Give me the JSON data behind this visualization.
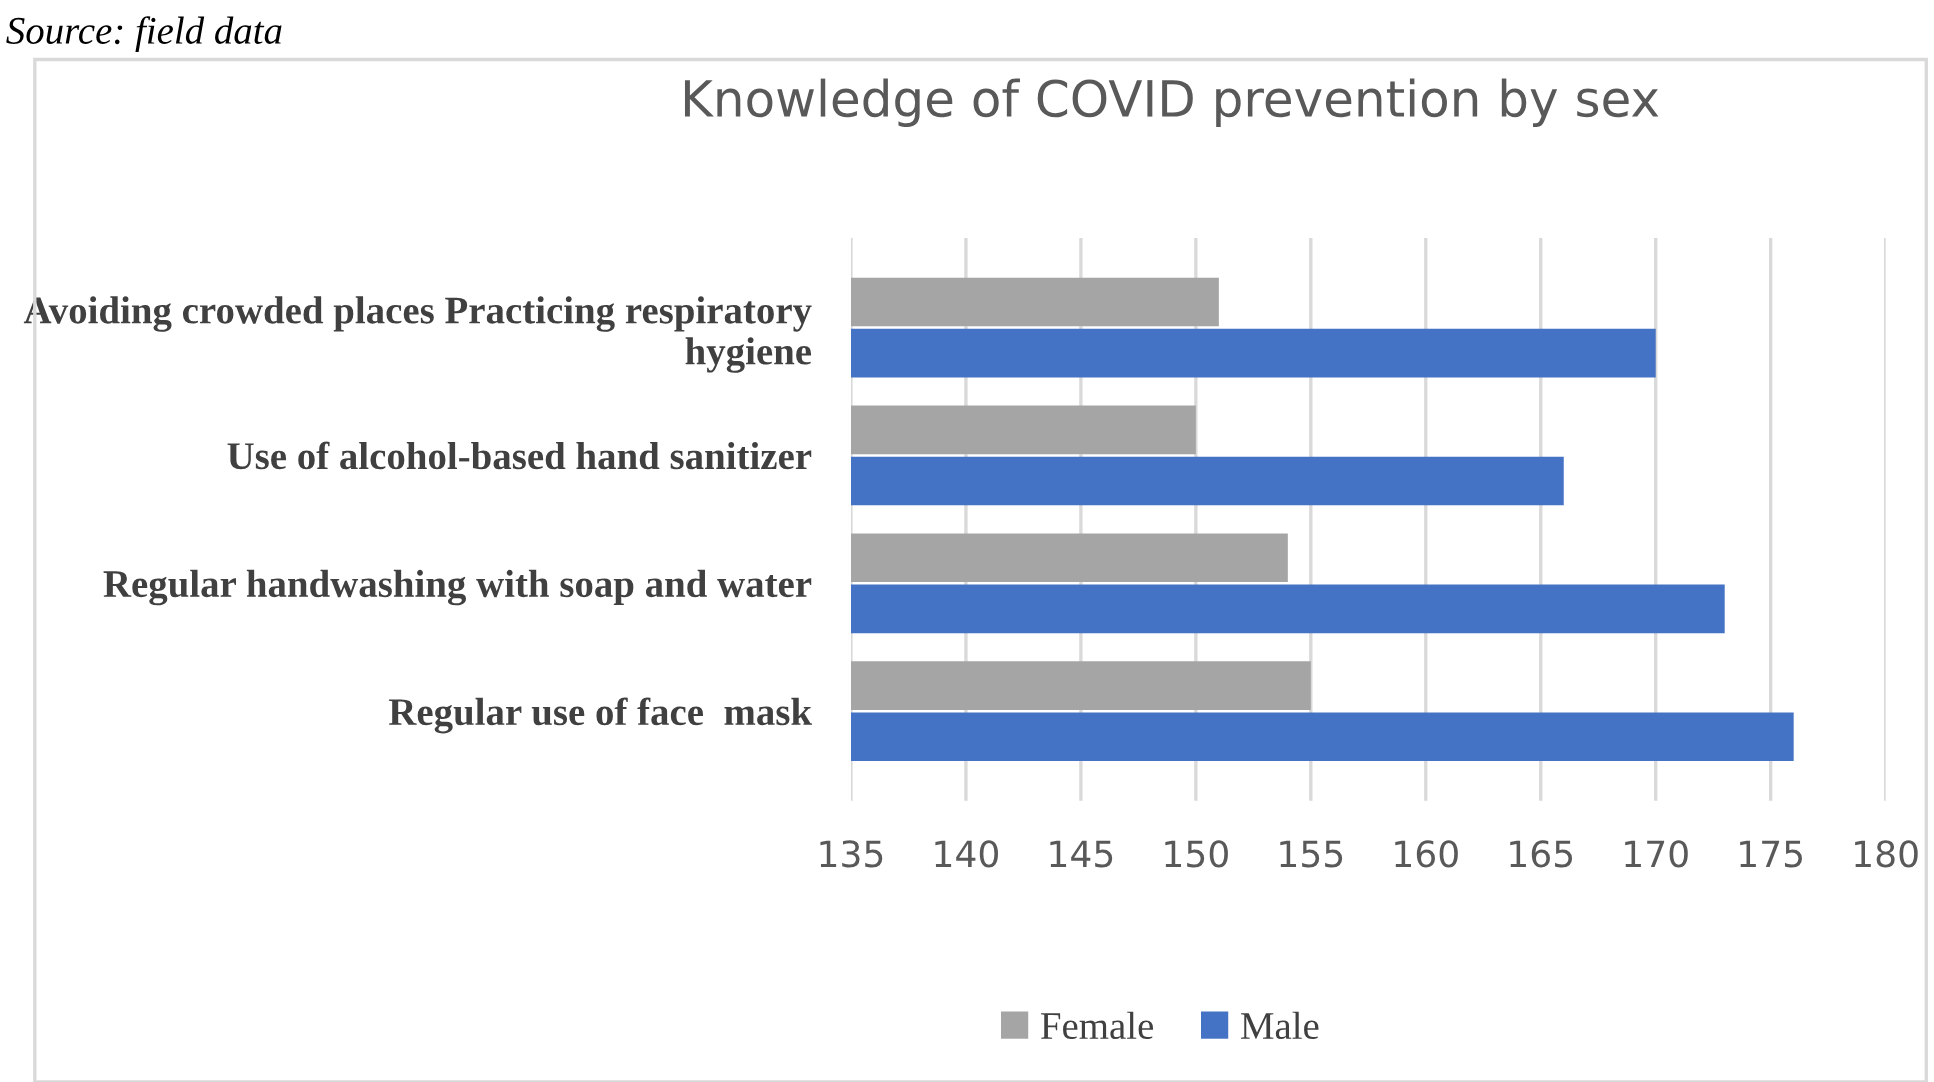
{
  "chart_data": {
    "type": "bar",
    "orientation": "horizontal",
    "title": "Knowledge of COVID prevention by sex",
    "categories": [
      "Avoiding crowded places Practicing respiratory hygiene",
      "Use of alcohol-based hand sanitizer",
      "Regular handwashing with soap and water",
      "Regular use of face  mask"
    ],
    "series": [
      {
        "name": "Female",
        "color": "#a5a5a5",
        "values": [
          151,
          150,
          154,
          155
        ]
      },
      {
        "name": "Male",
        "color": "#4472c4",
        "values": [
          170,
          166,
          173,
          176
        ]
      }
    ],
    "xlim": [
      135,
      180
    ],
    "xticks": [
      135,
      140,
      145,
      150,
      155,
      160,
      165,
      170,
      175,
      180
    ],
    "grid": "x",
    "legend": "bottom",
    "annotations": [
      "Source: field data"
    ]
  }
}
